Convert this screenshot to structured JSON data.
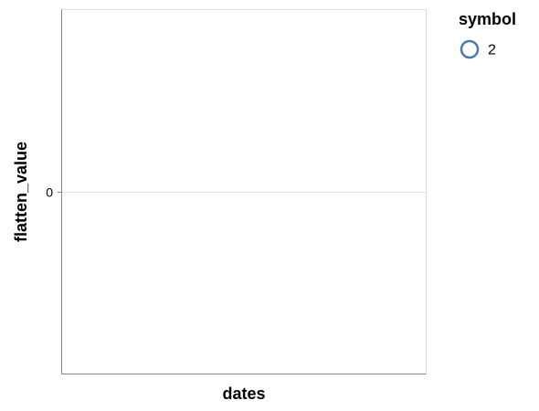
{
  "chart_data": {
    "type": "scatter",
    "xlabel": "dates",
    "ylabel": "flatten_value",
    "y_ticks": [
      "0"
    ],
    "x_ticks": [],
    "series": [
      {
        "name": "2",
        "x": [],
        "y": []
      }
    ],
    "grid": true,
    "legend": {
      "title": "symbol",
      "position": "top-right",
      "entries": [
        {
          "label": "2",
          "shape": "circle-outline",
          "color": "#4c78a8"
        }
      ]
    },
    "colors": {
      "series": "#4c78a8",
      "grid": "#dddddd",
      "axis": "#888888"
    }
  }
}
